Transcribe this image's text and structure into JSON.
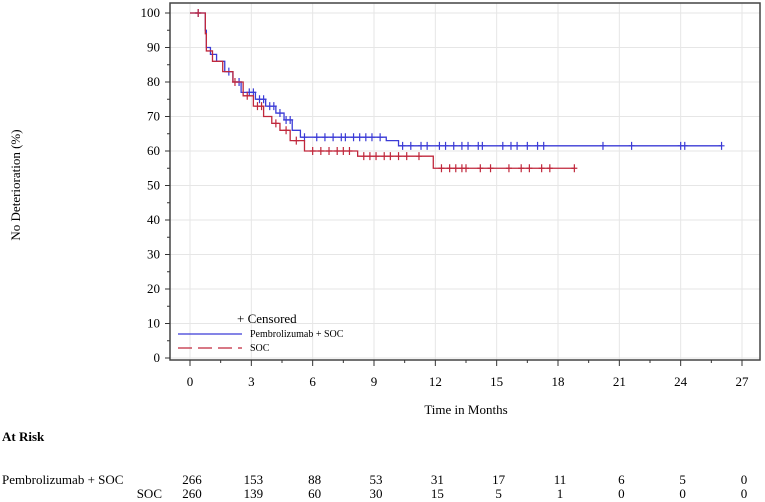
{
  "chart_data": {
    "type": "line",
    "subtype": "kaplan-meier",
    "title": "",
    "xlabel": "Time in Months",
    "ylabel": "No Deterioration (%)",
    "xlim": [
      0,
      27
    ],
    "ylim": [
      0,
      100
    ],
    "xticks": [
      0,
      3,
      6,
      9,
      12,
      15,
      18,
      21,
      24,
      27
    ],
    "yticks": [
      0,
      10,
      20,
      30,
      40,
      50,
      60,
      70,
      80,
      90,
      100
    ],
    "grid": true,
    "legend": {
      "position": "bottom-left",
      "censored_label": "+ Censored",
      "entries": [
        "Pembrolizumab + SOC",
        "SOC"
      ]
    },
    "series": [
      {
        "name": "Pembrolizumab + SOC",
        "color": "#3b3bd6",
        "line_style": "solid",
        "steps": [
          [
            0,
            100
          ],
          [
            0.75,
            95
          ],
          [
            0.8,
            90
          ],
          [
            1.0,
            88
          ],
          [
            1.3,
            86
          ],
          [
            1.7,
            83
          ],
          [
            2.1,
            80
          ],
          [
            2.5,
            77
          ],
          [
            3.2,
            75
          ],
          [
            3.7,
            73
          ],
          [
            4.2,
            71
          ],
          [
            4.6,
            69
          ],
          [
            5.0,
            66
          ],
          [
            5.4,
            64
          ],
          [
            9.6,
            63
          ],
          [
            10.2,
            61.5
          ],
          [
            26,
            61.5
          ]
        ],
        "censored": [
          0.4,
          1.9,
          2.4,
          2.9,
          3.1,
          3.4,
          3.6,
          3.9,
          4.1,
          4.4,
          4.7,
          4.9,
          5.6,
          6.2,
          6.6,
          7.0,
          7.4,
          7.6,
          8.0,
          8.3,
          8.6,
          8.9,
          9.3,
          10.4,
          10.8,
          11.3,
          11.6,
          12.2,
          12.5,
          12.9,
          13.3,
          13.6,
          14.1,
          14.3,
          15.3,
          15.7,
          16.0,
          16.5,
          17.0,
          17.3,
          20.2,
          21.6,
          24.0,
          24.2,
          26.0
        ],
        "at_risk": [
          266,
          153,
          88,
          53,
          31,
          17,
          11,
          6,
          5,
          0
        ]
      },
      {
        "name": "SOC",
        "color": "#c0283c",
        "line_style": "dashed",
        "steps": [
          [
            0,
            100
          ],
          [
            0.75,
            94
          ],
          [
            0.8,
            89
          ],
          [
            1.1,
            86
          ],
          [
            1.6,
            83
          ],
          [
            2.1,
            80
          ],
          [
            2.6,
            76
          ],
          [
            3.1,
            73
          ],
          [
            3.6,
            70
          ],
          [
            4.0,
            68
          ],
          [
            4.4,
            66
          ],
          [
            4.9,
            63
          ],
          [
            5.6,
            60
          ],
          [
            8.2,
            58.5
          ],
          [
            11.9,
            55
          ],
          [
            18.8,
            55
          ]
        ],
        "censored": [
          0.4,
          2.2,
          2.8,
          3.3,
          3.5,
          4.2,
          4.7,
          5.2,
          6.0,
          6.4,
          6.8,
          7.2,
          7.5,
          7.8,
          8.5,
          8.8,
          9.1,
          9.5,
          9.8,
          10.2,
          10.6,
          11.2,
          12.3,
          12.7,
          13.0,
          13.3,
          13.5,
          14.2,
          14.7,
          15.6,
          16.2,
          16.6,
          17.2,
          17.6,
          18.8
        ],
        "at_risk": [
          260,
          139,
          60,
          30,
          15,
          5,
          1,
          0,
          0,
          0
        ]
      }
    ]
  },
  "at_risk": {
    "heading": "At Risk",
    "rows": [
      {
        "label": "Pembrolizumab + SOC",
        "values": [
          "266",
          "153",
          "88",
          "53",
          "31",
          "17",
          "11",
          "6",
          "5",
          "0"
        ]
      },
      {
        "label": "SOC",
        "values": [
          "260",
          "139",
          "60",
          "30",
          "15",
          "5",
          "1",
          "0",
          "0",
          "0"
        ]
      }
    ]
  }
}
